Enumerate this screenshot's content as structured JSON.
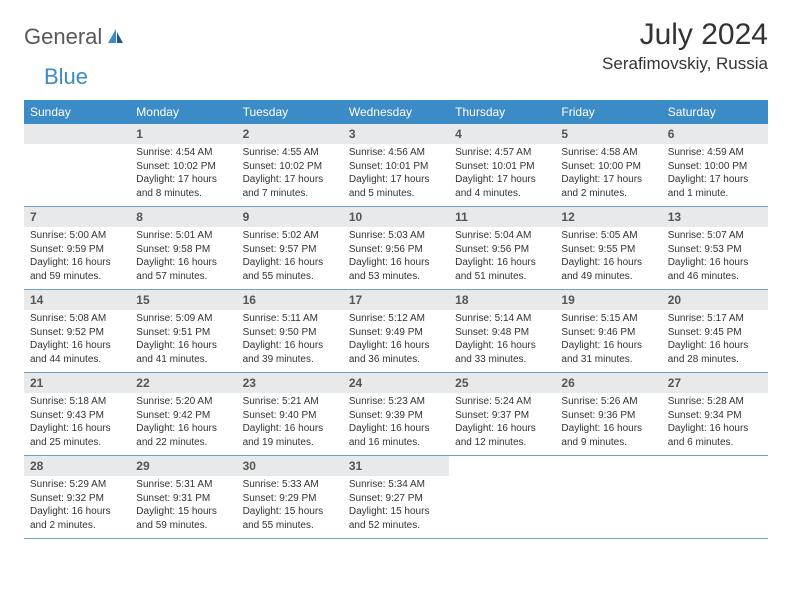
{
  "brand": {
    "part1": "General",
    "part2": "Blue"
  },
  "title": "July 2024",
  "location": "Serafimovskiy, Russia",
  "colors": {
    "header_bg": "#3b8bc6",
    "daynum_bg": "#e8e9ea",
    "rule": "#6fa0c7",
    "text": "#333333",
    "brand_gray": "#58595b",
    "brand_blue": "#3b8bc6"
  },
  "weekdays": [
    "Sunday",
    "Monday",
    "Tuesday",
    "Wednesday",
    "Thursday",
    "Friday",
    "Saturday"
  ],
  "weeks": [
    [
      {
        "n": "",
        "lines": []
      },
      {
        "n": "1",
        "lines": [
          "Sunrise: 4:54 AM",
          "Sunset: 10:02 PM",
          "Daylight: 17 hours",
          "and 8 minutes."
        ]
      },
      {
        "n": "2",
        "lines": [
          "Sunrise: 4:55 AM",
          "Sunset: 10:02 PM",
          "Daylight: 17 hours",
          "and 7 minutes."
        ]
      },
      {
        "n": "3",
        "lines": [
          "Sunrise: 4:56 AM",
          "Sunset: 10:01 PM",
          "Daylight: 17 hours",
          "and 5 minutes."
        ]
      },
      {
        "n": "4",
        "lines": [
          "Sunrise: 4:57 AM",
          "Sunset: 10:01 PM",
          "Daylight: 17 hours",
          "and 4 minutes."
        ]
      },
      {
        "n": "5",
        "lines": [
          "Sunrise: 4:58 AM",
          "Sunset: 10:00 PM",
          "Daylight: 17 hours",
          "and 2 minutes."
        ]
      },
      {
        "n": "6",
        "lines": [
          "Sunrise: 4:59 AM",
          "Sunset: 10:00 PM",
          "Daylight: 17 hours",
          "and 1 minute."
        ]
      }
    ],
    [
      {
        "n": "7",
        "lines": [
          "Sunrise: 5:00 AM",
          "Sunset: 9:59 PM",
          "Daylight: 16 hours",
          "and 59 minutes."
        ]
      },
      {
        "n": "8",
        "lines": [
          "Sunrise: 5:01 AM",
          "Sunset: 9:58 PM",
          "Daylight: 16 hours",
          "and 57 minutes."
        ]
      },
      {
        "n": "9",
        "lines": [
          "Sunrise: 5:02 AM",
          "Sunset: 9:57 PM",
          "Daylight: 16 hours",
          "and 55 minutes."
        ]
      },
      {
        "n": "10",
        "lines": [
          "Sunrise: 5:03 AM",
          "Sunset: 9:56 PM",
          "Daylight: 16 hours",
          "and 53 minutes."
        ]
      },
      {
        "n": "11",
        "lines": [
          "Sunrise: 5:04 AM",
          "Sunset: 9:56 PM",
          "Daylight: 16 hours",
          "and 51 minutes."
        ]
      },
      {
        "n": "12",
        "lines": [
          "Sunrise: 5:05 AM",
          "Sunset: 9:55 PM",
          "Daylight: 16 hours",
          "and 49 minutes."
        ]
      },
      {
        "n": "13",
        "lines": [
          "Sunrise: 5:07 AM",
          "Sunset: 9:53 PM",
          "Daylight: 16 hours",
          "and 46 minutes."
        ]
      }
    ],
    [
      {
        "n": "14",
        "lines": [
          "Sunrise: 5:08 AM",
          "Sunset: 9:52 PM",
          "Daylight: 16 hours",
          "and 44 minutes."
        ]
      },
      {
        "n": "15",
        "lines": [
          "Sunrise: 5:09 AM",
          "Sunset: 9:51 PM",
          "Daylight: 16 hours",
          "and 41 minutes."
        ]
      },
      {
        "n": "16",
        "lines": [
          "Sunrise: 5:11 AM",
          "Sunset: 9:50 PM",
          "Daylight: 16 hours",
          "and 39 minutes."
        ]
      },
      {
        "n": "17",
        "lines": [
          "Sunrise: 5:12 AM",
          "Sunset: 9:49 PM",
          "Daylight: 16 hours",
          "and 36 minutes."
        ]
      },
      {
        "n": "18",
        "lines": [
          "Sunrise: 5:14 AM",
          "Sunset: 9:48 PM",
          "Daylight: 16 hours",
          "and 33 minutes."
        ]
      },
      {
        "n": "19",
        "lines": [
          "Sunrise: 5:15 AM",
          "Sunset: 9:46 PM",
          "Daylight: 16 hours",
          "and 31 minutes."
        ]
      },
      {
        "n": "20",
        "lines": [
          "Sunrise: 5:17 AM",
          "Sunset: 9:45 PM",
          "Daylight: 16 hours",
          "and 28 minutes."
        ]
      }
    ],
    [
      {
        "n": "21",
        "lines": [
          "Sunrise: 5:18 AM",
          "Sunset: 9:43 PM",
          "Daylight: 16 hours",
          "and 25 minutes."
        ]
      },
      {
        "n": "22",
        "lines": [
          "Sunrise: 5:20 AM",
          "Sunset: 9:42 PM",
          "Daylight: 16 hours",
          "and 22 minutes."
        ]
      },
      {
        "n": "23",
        "lines": [
          "Sunrise: 5:21 AM",
          "Sunset: 9:40 PM",
          "Daylight: 16 hours",
          "and 19 minutes."
        ]
      },
      {
        "n": "24",
        "lines": [
          "Sunrise: 5:23 AM",
          "Sunset: 9:39 PM",
          "Daylight: 16 hours",
          "and 16 minutes."
        ]
      },
      {
        "n": "25",
        "lines": [
          "Sunrise: 5:24 AM",
          "Sunset: 9:37 PM",
          "Daylight: 16 hours",
          "and 12 minutes."
        ]
      },
      {
        "n": "26",
        "lines": [
          "Sunrise: 5:26 AM",
          "Sunset: 9:36 PM",
          "Daylight: 16 hours",
          "and 9 minutes."
        ]
      },
      {
        "n": "27",
        "lines": [
          "Sunrise: 5:28 AM",
          "Sunset: 9:34 PM",
          "Daylight: 16 hours",
          "and 6 minutes."
        ]
      }
    ],
    [
      {
        "n": "28",
        "lines": [
          "Sunrise: 5:29 AM",
          "Sunset: 9:32 PM",
          "Daylight: 16 hours",
          "and 2 minutes."
        ]
      },
      {
        "n": "29",
        "lines": [
          "Sunrise: 5:31 AM",
          "Sunset: 9:31 PM",
          "Daylight: 15 hours",
          "and 59 minutes."
        ]
      },
      {
        "n": "30",
        "lines": [
          "Sunrise: 5:33 AM",
          "Sunset: 9:29 PM",
          "Daylight: 15 hours",
          "and 55 minutes."
        ]
      },
      {
        "n": "31",
        "lines": [
          "Sunrise: 5:34 AM",
          "Sunset: 9:27 PM",
          "Daylight: 15 hours",
          "and 52 minutes."
        ]
      },
      {
        "n": "",
        "lines": []
      },
      {
        "n": "",
        "lines": []
      },
      {
        "n": "",
        "lines": []
      }
    ]
  ]
}
